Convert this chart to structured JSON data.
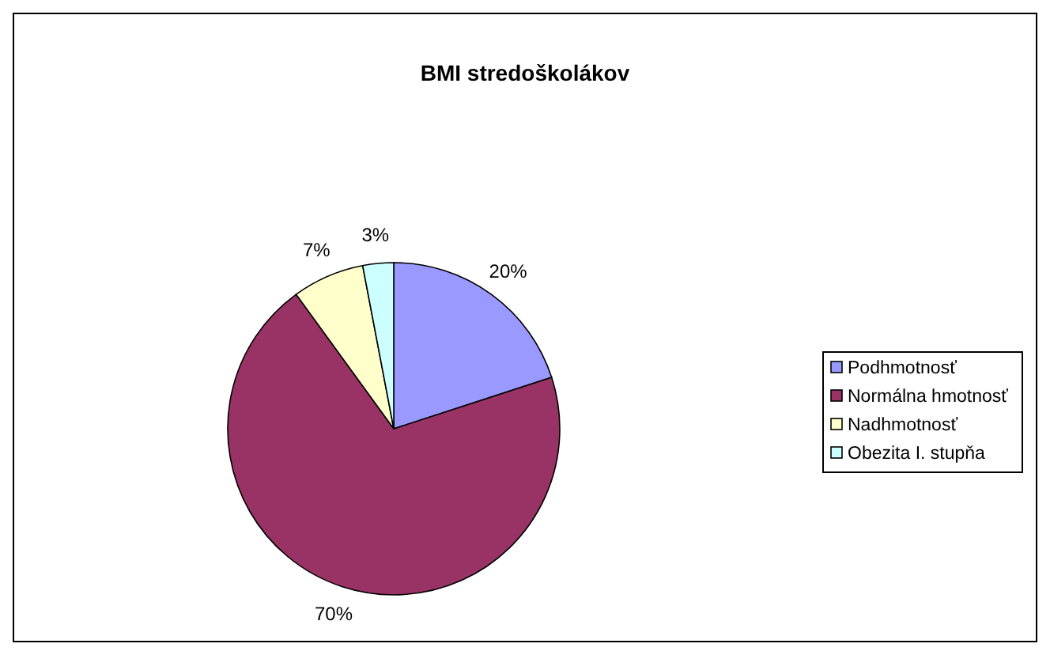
{
  "chart_data": {
    "type": "pie",
    "title": "BMI stredoškolákov",
    "categories": [
      "Podhmotnosť",
      "Normálna hmotnosť",
      "Nadhmotnosť",
      "Obezita I. stupňa"
    ],
    "values": [
      20,
      70,
      7,
      3
    ],
    "value_labels": [
      "20%",
      "70%",
      "7%",
      "3%"
    ],
    "colors": [
      "#9999ff",
      "#993366",
      "#ffffcc",
      "#ccffff"
    ],
    "legend": "right"
  }
}
